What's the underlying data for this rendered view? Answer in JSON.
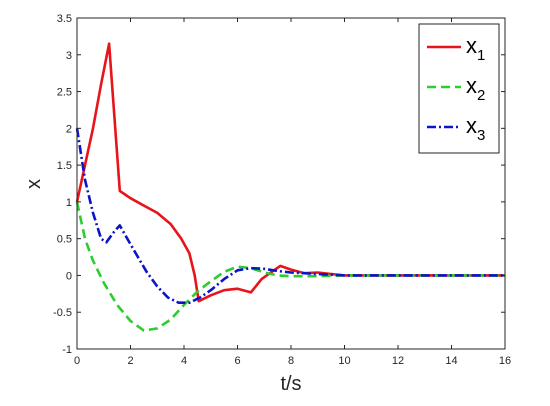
{
  "chart_data": {
    "type": "line",
    "xlabel": "t/s",
    "ylabel": "x",
    "xlim": [
      0,
      16
    ],
    "ylim": [
      -1,
      3.5
    ],
    "xticks": [
      "0",
      "2",
      "4",
      "6",
      "8",
      "10",
      "12",
      "14",
      "16"
    ],
    "yticks": [
      "-1",
      "-0.5",
      "0",
      "0.5",
      "1",
      "1.5",
      "2",
      "2.5",
      "3",
      "3.5"
    ],
    "grid": false,
    "legend_position": "top-right",
    "series": [
      {
        "name": "x",
        "subscript": "1",
        "color": "#e8141b",
        "dash": "solid",
        "points": [
          [
            0,
            1.0
          ],
          [
            0.3,
            1.5
          ],
          [
            0.6,
            2.0
          ],
          [
            0.9,
            2.6
          ],
          [
            1.2,
            3.15
          ],
          [
            1.35,
            2.4
          ],
          [
            1.6,
            1.15
          ],
          [
            2.0,
            1.05
          ],
          [
            2.5,
            0.95
          ],
          [
            3.0,
            0.85
          ],
          [
            3.5,
            0.7
          ],
          [
            3.9,
            0.5
          ],
          [
            4.2,
            0.3
          ],
          [
            4.4,
            0.0
          ],
          [
            4.55,
            -0.35
          ],
          [
            5.0,
            -0.27
          ],
          [
            5.5,
            -0.2
          ],
          [
            6.0,
            -0.18
          ],
          [
            6.5,
            -0.23
          ],
          [
            6.9,
            -0.05
          ],
          [
            7.4,
            0.08
          ],
          [
            7.6,
            0.13
          ],
          [
            8.0,
            0.08
          ],
          [
            8.5,
            0.03
          ],
          [
            9.0,
            0.04
          ],
          [
            9.5,
            0.02
          ],
          [
            10,
            0.0
          ],
          [
            11,
            0.0
          ],
          [
            12,
            0.0
          ],
          [
            13,
            0.0
          ],
          [
            14,
            0.0
          ],
          [
            15,
            0.0
          ],
          [
            16,
            0.0
          ]
        ]
      },
      {
        "name": "x",
        "subscript": "2",
        "color": "#2dcd2d",
        "dash": "dashed",
        "points": [
          [
            0,
            1.0
          ],
          [
            0.3,
            0.5
          ],
          [
            0.6,
            0.2
          ],
          [
            1.0,
            -0.1
          ],
          [
            1.5,
            -0.4
          ],
          [
            2.0,
            -0.62
          ],
          [
            2.5,
            -0.75
          ],
          [
            3.0,
            -0.72
          ],
          [
            3.5,
            -0.6
          ],
          [
            4.0,
            -0.4
          ],
          [
            4.5,
            -0.22
          ],
          [
            5.0,
            -0.08
          ],
          [
            5.5,
            0.05
          ],
          [
            6.0,
            0.12
          ],
          [
            6.5,
            0.1
          ],
          [
            7.0,
            0.04
          ],
          [
            7.5,
            0.0
          ],
          [
            8.0,
            -0.01
          ],
          [
            9.0,
            -0.01
          ],
          [
            10,
            0.0
          ],
          [
            12,
            0.0
          ],
          [
            14,
            0.0
          ],
          [
            16,
            0.0
          ]
        ]
      },
      {
        "name": "x",
        "subscript": "3",
        "color": "#0a14c8",
        "dash": "dashdot",
        "points": [
          [
            0,
            2.0
          ],
          [
            0.3,
            1.3
          ],
          [
            0.6,
            0.85
          ],
          [
            0.9,
            0.5
          ],
          [
            1.1,
            0.45
          ],
          [
            1.4,
            0.6
          ],
          [
            1.6,
            0.68
          ],
          [
            1.8,
            0.55
          ],
          [
            2.2,
            0.3
          ],
          [
            2.6,
            0.05
          ],
          [
            3.0,
            -0.15
          ],
          [
            3.4,
            -0.3
          ],
          [
            3.8,
            -0.37
          ],
          [
            4.2,
            -0.37
          ],
          [
            4.6,
            -0.3
          ],
          [
            5.0,
            -0.2
          ],
          [
            5.5,
            -0.05
          ],
          [
            6.0,
            0.07
          ],
          [
            6.5,
            0.1
          ],
          [
            7.0,
            0.09
          ],
          [
            7.5,
            0.06
          ],
          [
            8.0,
            0.04
          ],
          [
            9.0,
            0.02
          ],
          [
            10,
            0.0
          ],
          [
            12,
            0.0
          ],
          [
            14,
            0.0
          ],
          [
            16,
            0.0
          ]
        ]
      }
    ]
  }
}
